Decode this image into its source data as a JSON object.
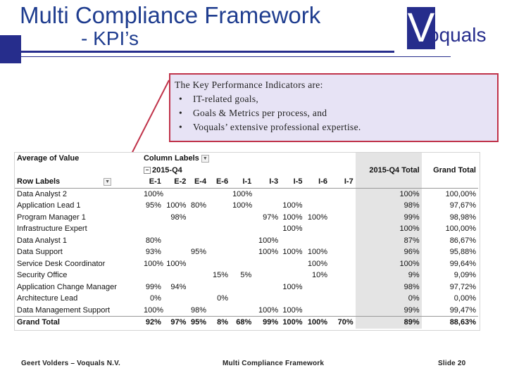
{
  "title": {
    "line1": "Multi Compliance Framework",
    "line2": "- KPI’s"
  },
  "logo": {
    "letter": "V",
    "rest": "oquals"
  },
  "callout": {
    "intro": "The Key Performance Indicators are:",
    "bullets": [
      "IT-related goals,",
      "Goals & Metrics per process, and",
      "Voquals’ extensive professional expertise."
    ]
  },
  "pivot": {
    "value_field": "Average of Value",
    "column_labels": "Column Labels",
    "period": "2015-Q4",
    "row_labels": "Row Labels",
    "columns": [
      "E-1",
      "E-2",
      "E-4",
      "E-6",
      "I-1",
      "I-3",
      "I-5",
      "I-6",
      "I-7"
    ],
    "period_total_header": "2015-Q4 Total",
    "grand_total_header": "Grand Total",
    "rows": [
      {
        "label": "Data Analyst 2",
        "cells": [
          "100%",
          "",
          "",
          "",
          "100%",
          "",
          "",
          "",
          ""
        ],
        "period_total": "100%",
        "grand_total": "100,00%"
      },
      {
        "label": "Application Lead 1",
        "cells": [
          "95%",
          "100%",
          "80%",
          "",
          "100%",
          "",
          "100%",
          "",
          ""
        ],
        "period_total": "98%",
        "grand_total": "97,67%"
      },
      {
        "label": "Program Manager 1",
        "cells": [
          "",
          "98%",
          "",
          "",
          "",
          "97%",
          "100%",
          "100%",
          ""
        ],
        "period_total": "99%",
        "grand_total": "98,98%"
      },
      {
        "label": "Infrastructure Expert",
        "cells": [
          "",
          "",
          "",
          "",
          "",
          "",
          "100%",
          "",
          ""
        ],
        "period_total": "100%",
        "grand_total": "100,00%"
      },
      {
        "label": "Data Analyst 1",
        "cells": [
          "80%",
          "",
          "",
          "",
          "",
          "100%",
          "",
          "",
          ""
        ],
        "period_total": "87%",
        "grand_total": "86,67%"
      },
      {
        "label": "Data Support",
        "cells": [
          "93%",
          "",
          "95%",
          "",
          "",
          "100%",
          "100%",
          "100%",
          ""
        ],
        "period_total": "96%",
        "grand_total": "95,88%"
      },
      {
        "label": "Service Desk Coordinator",
        "cells": [
          "100%",
          "100%",
          "",
          "",
          "",
          "",
          "",
          "100%",
          ""
        ],
        "period_total": "100%",
        "grand_total": "99,64%"
      },
      {
        "label": "Security Office",
        "cells": [
          "",
          "",
          "",
          "15%",
          "5%",
          "",
          "",
          "10%",
          ""
        ],
        "period_total": "9%",
        "grand_total": "9,09%"
      },
      {
        "label": "Application Change Manager",
        "cells": [
          "99%",
          "94%",
          "",
          "",
          "",
          "",
          "100%",
          "",
          ""
        ],
        "period_total": "98%",
        "grand_total": "97,72%"
      },
      {
        "label": "Architecture Lead",
        "cells": [
          "0%",
          "",
          "",
          "0%",
          "",
          "",
          "",
          "",
          ""
        ],
        "period_total": "0%",
        "grand_total": "0,00%"
      },
      {
        "label": "Data Management Support",
        "cells": [
          "100%",
          "",
          "98%",
          "",
          "",
          "100%",
          "100%",
          "",
          ""
        ],
        "period_total": "99%",
        "grand_total": "99,47%"
      }
    ],
    "total_row": {
      "label": "Grand Total",
      "cells": [
        "92%",
        "97%",
        "95%",
        "8%",
        "68%",
        "99%",
        "100%",
        "100%",
        "70%"
      ],
      "period_total": "89%",
      "grand_total": "88,63%"
    }
  },
  "footer": {
    "left": "Geert Volders – Voquals N.V.",
    "center": "Multi Compliance Framework",
    "right": "Slide 20"
  },
  "colors": {
    "brand": "#262d8c",
    "title": "#1f3d8f",
    "callout_border": "#c0334a",
    "callout_bg": "#e7e3f5"
  }
}
